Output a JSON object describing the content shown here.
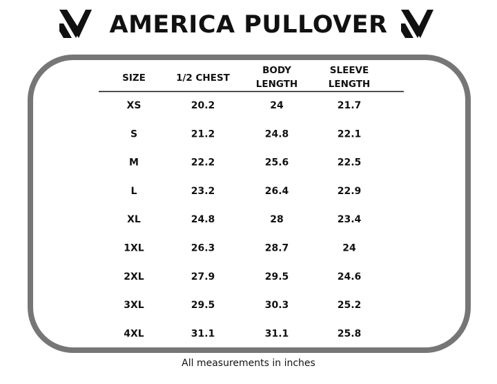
{
  "header": {
    "title": "AMERICA PULLOVER"
  },
  "table": {
    "columns": [
      [
        "SIZE"
      ],
      [
        "1/2 CHEST"
      ],
      [
        "BODY",
        "LENGTH"
      ],
      [
        "SLEEVE",
        "LENGTH"
      ]
    ],
    "rows": [
      [
        "XS",
        "20.2",
        "24",
        "21.7"
      ],
      [
        "S",
        "21.2",
        "24.8",
        "22.1"
      ],
      [
        "M",
        "22.2",
        "25.6",
        "22.5"
      ],
      [
        "L",
        "23.2",
        "26.4",
        "22.9"
      ],
      [
        "XL",
        "24.8",
        "28",
        "23.4"
      ],
      [
        "1XL",
        "26.3",
        "28.7",
        "24"
      ],
      [
        "2XL",
        "27.9",
        "29.5",
        "24.6"
      ],
      [
        "3XL",
        "29.5",
        "30.3",
        "25.2"
      ],
      [
        "4XL",
        "31.1",
        "31.1",
        "25.8"
      ]
    ]
  },
  "footer": {
    "note": "All measurements in inches"
  }
}
